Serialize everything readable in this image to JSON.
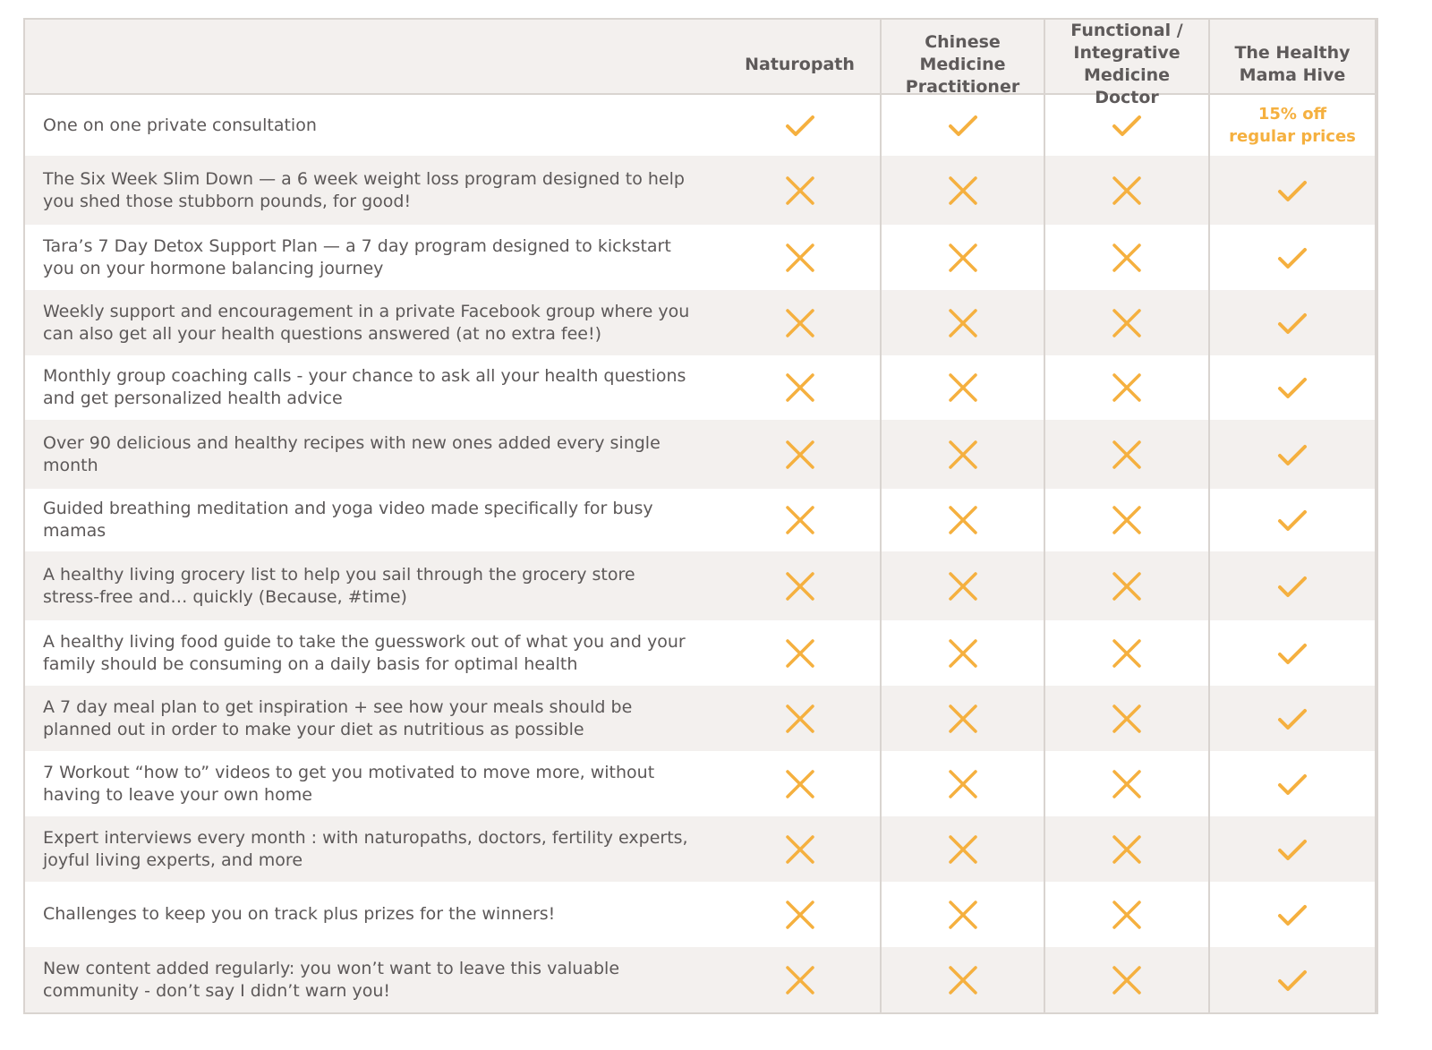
{
  "colors": {
    "accent": "#f5b03f",
    "text": "#5c5858",
    "shade": "#f3f0ee",
    "border": "#d9d4d0"
  },
  "table": {
    "corner_label": "",
    "columns": [
      {
        "label": "Naturopath",
        "icon_yes": "check-icon",
        "icon_no": "cross-icon"
      },
      {
        "label": "Chinese\nMedicine\nPractitioner",
        "icon_yes": "check-icon",
        "icon_no": "cross-icon"
      },
      {
        "label": "Functional /\nIntegrative\nMedicine Doctor",
        "icon_yes": "check-icon",
        "icon_no": "cross-icon"
      },
      {
        "label": "The Healthy\nMama Hive",
        "icon_yes": "check-icon",
        "icon_no": "cross-icon"
      }
    ],
    "rows": [
      {
        "feature": "One on one private consultation",
        "values": [
          "yes",
          "yes",
          "yes",
          "15% off\nregular prices"
        ]
      },
      {
        "feature": "The Six Week Slim Down — a 6 week weight loss program designed to help you shed those stubborn pounds, for good!",
        "values": [
          "no",
          "no",
          "no",
          "yes"
        ]
      },
      {
        "feature": "Tara’s 7 Day Detox Support Plan — a 7 day program designed to kickstart you on your hormone balancing journey",
        "values": [
          "no",
          "no",
          "no",
          "yes"
        ]
      },
      {
        "feature": "Weekly support and encouragement in a private Facebook group where you can also get all your health questions answered (at no extra fee!)",
        "values": [
          "no",
          "no",
          "no",
          "yes"
        ]
      },
      {
        "feature": "Monthly group coaching calls - your chance to ask all your health questions and get personalized health advice",
        "values": [
          "no",
          "no",
          "no",
          "yes"
        ]
      },
      {
        "feature": "Over 90 delicious and healthy recipes with new ones added every single month",
        "values": [
          "no",
          "no",
          "no",
          "yes"
        ]
      },
      {
        "feature": "Guided breathing meditation and yoga video made specifically for busy mamas",
        "values": [
          "no",
          "no",
          "no",
          "yes"
        ]
      },
      {
        "feature": "A healthy living grocery list  to help you sail through the grocery store stress-free and… quickly (Because, #time)",
        "values": [
          "no",
          "no",
          "no",
          "yes"
        ]
      },
      {
        "feature": "A healthy living food guide to take the guesswork out of what you and your family should be consuming on a daily basis for optimal health",
        "values": [
          "no",
          "no",
          "no",
          "yes"
        ]
      },
      {
        "feature": "A 7 day meal plan to get inspiration + see how your meals should be planned out in order to make your diet as nutritious as possible",
        "values": [
          "no",
          "no",
          "no",
          "yes"
        ]
      },
      {
        "feature": "7 Workout “how to” videos to get you motivated to move more, without having to leave your own home",
        "values": [
          "no",
          "no",
          "no",
          "yes"
        ]
      },
      {
        "feature": "Expert interviews every month : with naturopaths, doctors, fertility experts, joyful living experts, and more",
        "values": [
          "no",
          "no",
          "no",
          "yes"
        ]
      },
      {
        "feature": "Challenges to keep you on track plus prizes for the winners!",
        "values": [
          "no",
          "no",
          "no",
          "yes"
        ]
      },
      {
        "feature": "New content added regularly: you won’t want to leave this valuable community - don’t say I didn’t warn you!",
        "values": [
          "no",
          "no",
          "no",
          "yes"
        ]
      }
    ]
  }
}
